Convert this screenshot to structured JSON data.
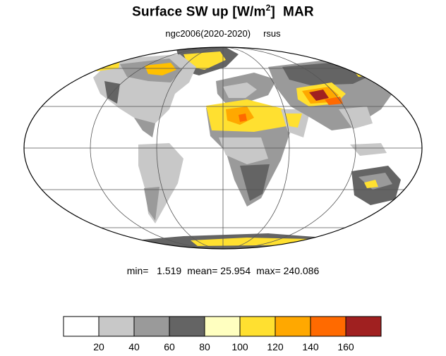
{
  "title": {
    "main": "Surface SW up [W/m",
    "sup": "2",
    "close": "]",
    "season": "MAR"
  },
  "subtitle": {
    "run": "ngc2006(2020-2020)",
    "variable": "rsus"
  },
  "stats": {
    "min_label": "min=",
    "min": "1.519",
    "mean_label": "mean=",
    "mean": "25.954",
    "max_label": "max=",
    "max": "240.086"
  },
  "colorbar": {
    "colors": [
      "#ffffff",
      "#c8c8c8",
      "#9a9a9a",
      "#646464",
      "#ffffc0",
      "#ffe030",
      "#ffa800",
      "#ff6a00",
      "#a02020"
    ],
    "tick_labels": [
      "20",
      "40",
      "60",
      "80",
      "100",
      "120",
      "140",
      "160"
    ]
  },
  "map": {
    "projection": "Mollweide",
    "grid": "on",
    "ocean_color": "#ffffff"
  }
}
